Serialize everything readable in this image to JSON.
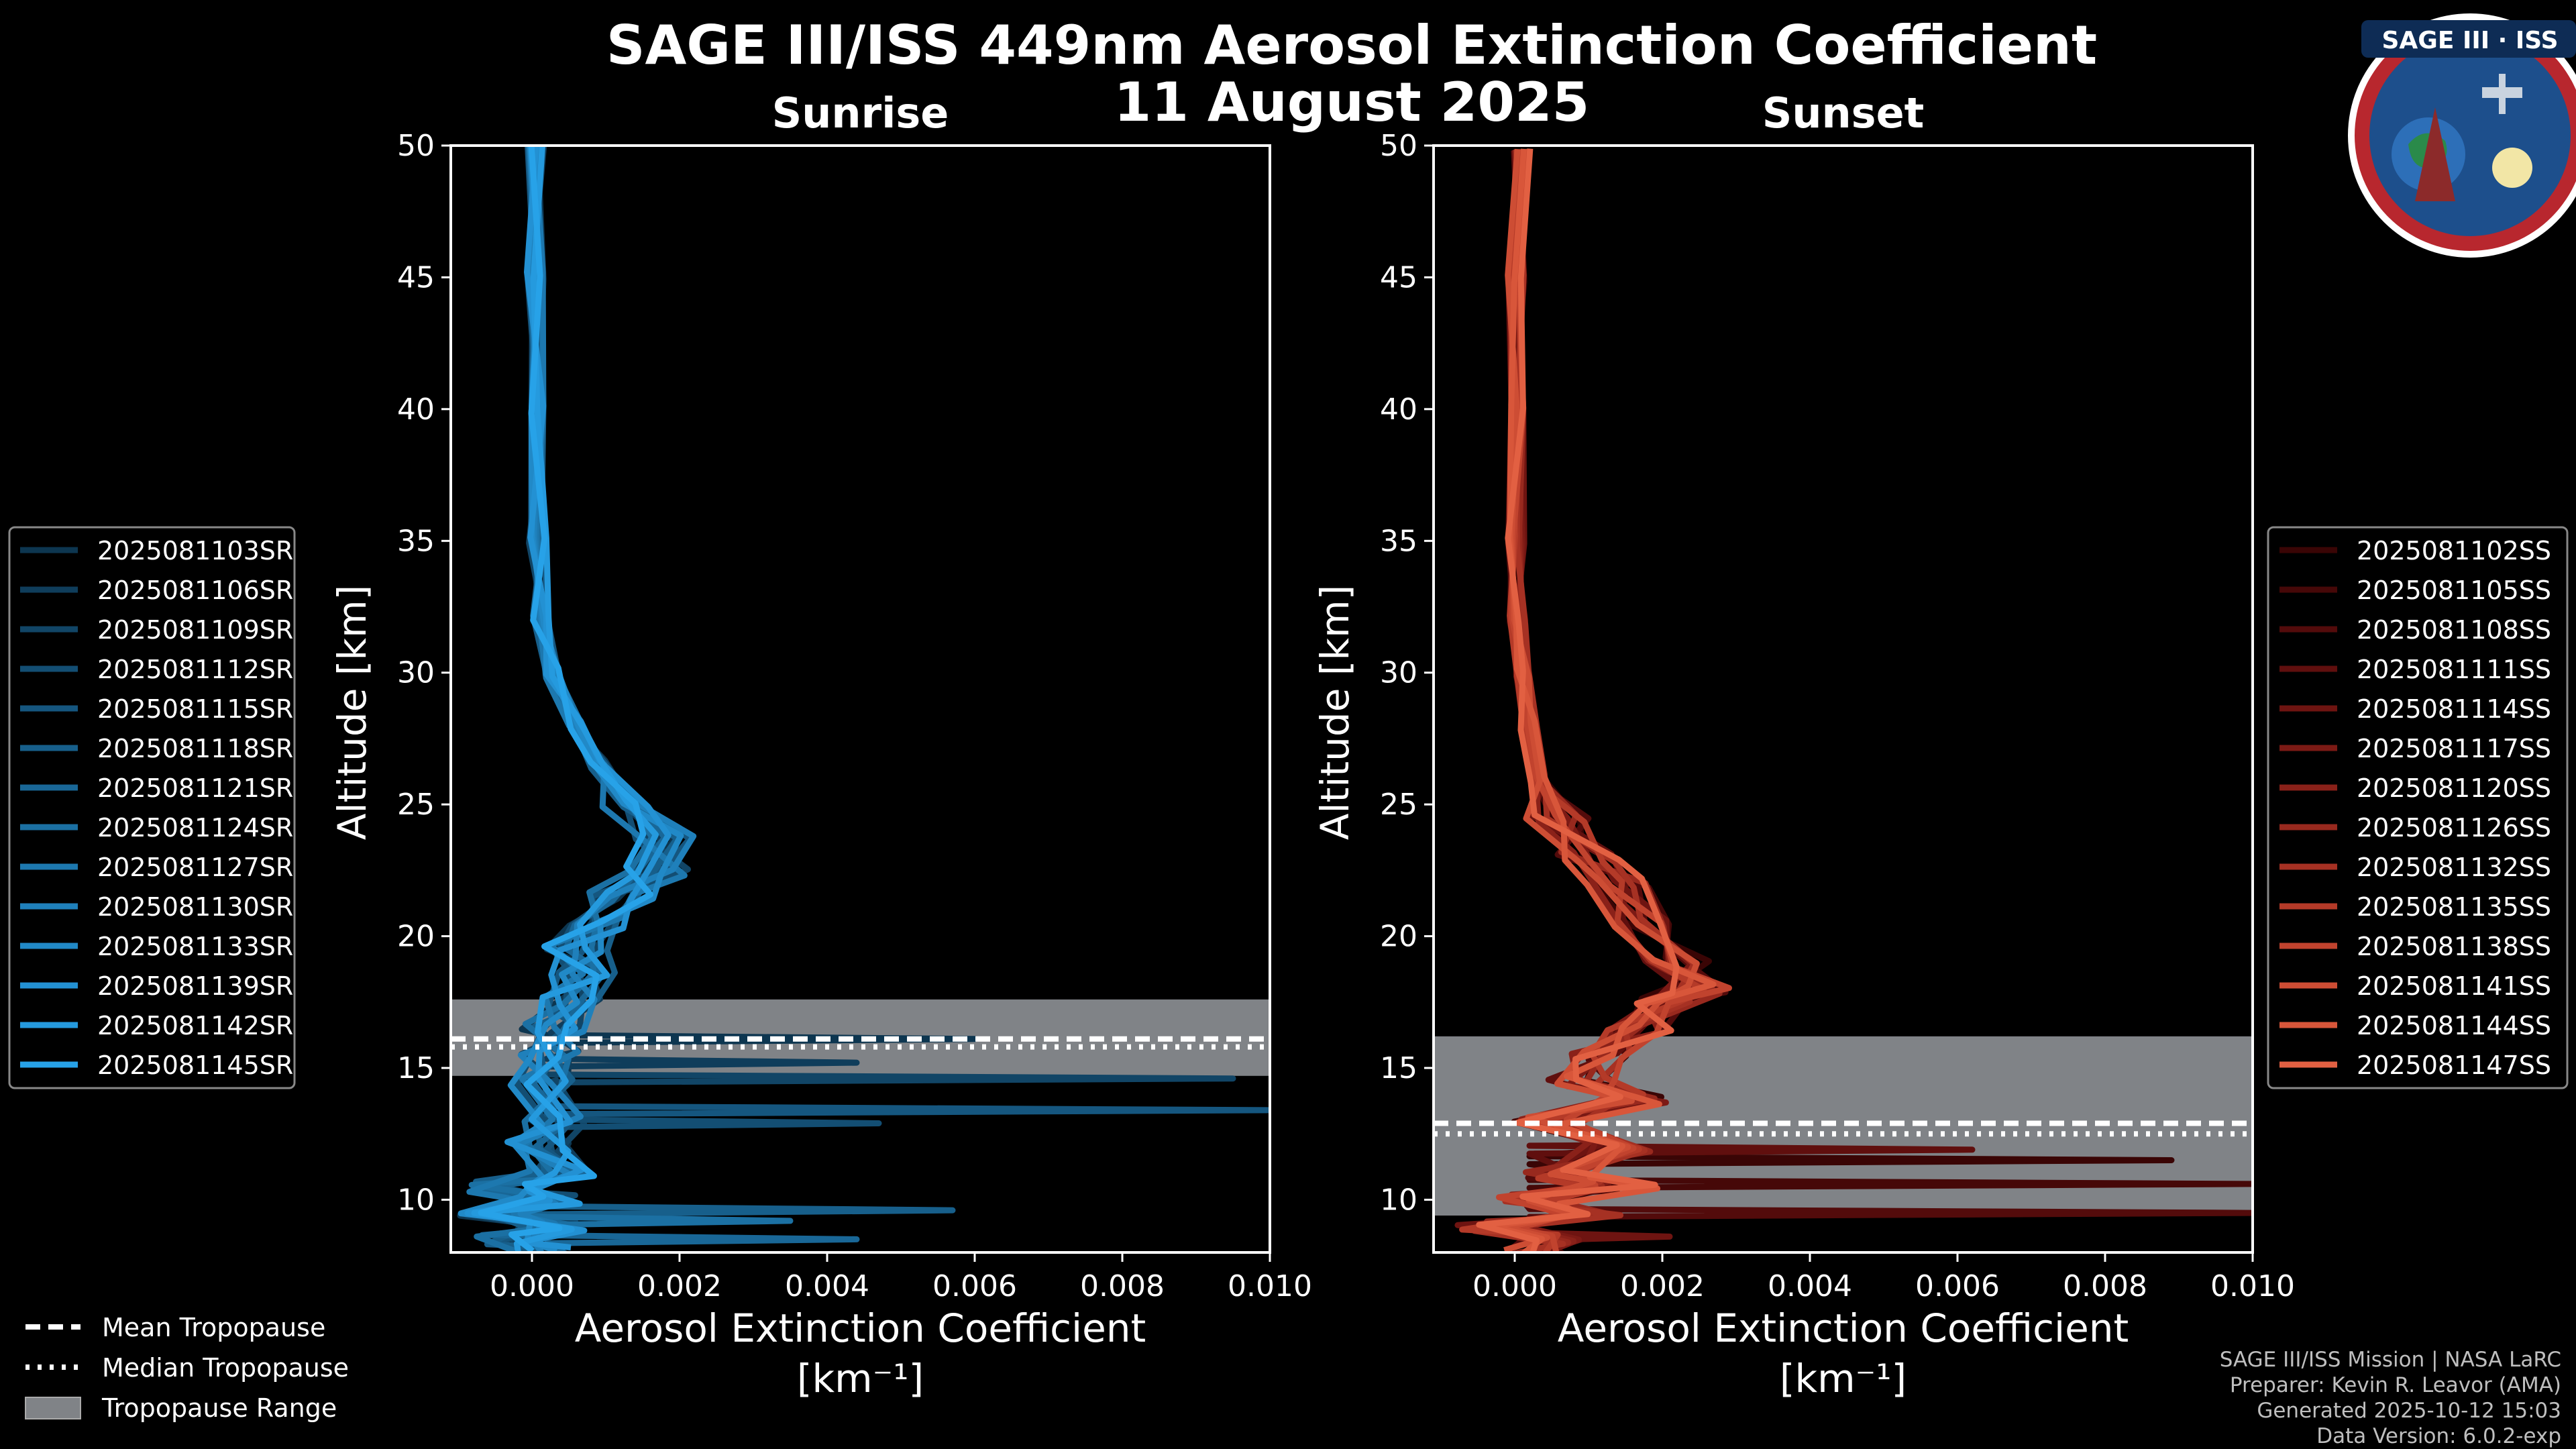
{
  "title": "SAGE III/ISS 449nm Aerosol Extinction Coefficient",
  "date": "11 August 2025",
  "logo": {
    "text": "SAGE III · ISS"
  },
  "chart_data": [
    {
      "type": "line",
      "subtitle": "Sunrise",
      "xlabel": "Aerosol Extinction Coefficient",
      "xunit": "[km⁻¹]",
      "ylabel": "Altitude [km]",
      "xlim": [
        -0.0011,
        0.01
      ],
      "ylim": [
        8,
        50
      ],
      "xticks": [
        "0.000",
        "0.002",
        "0.004",
        "0.006",
        "0.008",
        "0.010"
      ],
      "xtick_values": [
        0,
        0.002,
        0.004,
        0.006,
        0.008,
        0.01
      ],
      "yticks": [
        10,
        15,
        20,
        25,
        30,
        35,
        40,
        45,
        50
      ],
      "tropopause": {
        "min": 14.7,
        "max": 17.6,
        "mean": 16.1,
        "median": 15.8
      },
      "base_profile": [
        [
          5e-05,
          50
        ],
        [
          5e-05,
          45
        ],
        [
          6e-05,
          40
        ],
        [
          8e-05,
          35
        ],
        [
          0.00012,
          32
        ],
        [
          0.0003,
          30
        ],
        [
          0.0006,
          28
        ],
        [
          0.0009,
          26.5
        ],
        [
          0.0013,
          25
        ],
        [
          0.0018,
          23.8
        ],
        [
          0.0017,
          22.5
        ],
        [
          0.0012,
          21.5
        ],
        [
          0.0008,
          20.5
        ],
        [
          0.0006,
          19.5
        ],
        [
          0.0007,
          18.5
        ],
        [
          0.0005,
          17.5
        ],
        [
          0.0003,
          16.5
        ],
        [
          0.0002,
          15.5
        ],
        [
          0.0001,
          14.5
        ],
        [
          0.0003,
          13
        ],
        [
          0.0001,
          12
        ],
        [
          0.0004,
          11
        ],
        [
          -0.0004,
          10.5
        ],
        [
          0.0002,
          10
        ],
        [
          -0.0006,
          9.5
        ],
        [
          0.0003,
          9
        ],
        [
          -0.0003,
          8.5
        ],
        [
          0.0001,
          8
        ]
      ],
      "spikes": [
        [
          0.006,
          16.1
        ],
        [
          0.0044,
          15.2
        ],
        [
          0.0095,
          14.6
        ],
        [
          0.0047,
          12.9
        ],
        [
          0.01,
          13.4
        ],
        [
          0.0057,
          9.6
        ],
        [
          0.0044,
          8.5
        ],
        [
          0.0035,
          9.2
        ]
      ],
      "legend": {
        "position": "left",
        "entries": [
          "2025081103SR",
          "2025081106SR",
          "2025081109SR",
          "2025081112SR",
          "2025081115SR",
          "2025081118SR",
          "2025081121SR",
          "2025081124SR",
          "2025081127SR",
          "2025081130SR",
          "2025081133SR",
          "2025081139SR",
          "2025081142SR",
          "2025081145SR"
        ],
        "colors": [
          "#0d3650",
          "#0f3d5b",
          "#114566",
          "#134e73",
          "#15567f",
          "#175f8b",
          "#196797",
          "#1b70a3",
          "#1d78af",
          "#1f80bb",
          "#2189c7",
          "#2391d3",
          "#259ade",
          "#27a2e8"
        ]
      }
    },
    {
      "type": "line",
      "subtitle": "Sunset",
      "xlabel": "Aerosol Extinction Coefficient",
      "xunit": "[km⁻¹]",
      "ylabel": "Altitude [km]",
      "xlim": [
        -0.0011,
        0.01
      ],
      "ylim": [
        8,
        50
      ],
      "xticks": [
        "0.000",
        "0.002",
        "0.004",
        "0.006",
        "0.008",
        "0.010"
      ],
      "xtick_values": [
        0,
        0.002,
        0.004,
        0.006,
        0.008,
        0.01
      ],
      "yticks": [
        10,
        15,
        20,
        25,
        30,
        35,
        40,
        45,
        50
      ],
      "tropopause": {
        "min": 9.4,
        "max": 16.2,
        "mean": 12.9,
        "median": 12.5
      },
      "base_profile": [
        [
          0.0001,
          50
        ],
        [
          2e-05,
          45
        ],
        [
          1e-05,
          40
        ],
        [
          2e-05,
          35
        ],
        [
          5e-05,
          32
        ],
        [
          0.0001,
          30
        ],
        [
          0.0002,
          28
        ],
        [
          0.0003,
          26
        ],
        [
          0.0006,
          24.5
        ],
        [
          0.001,
          23
        ],
        [
          0.0014,
          22
        ],
        [
          0.0018,
          20.5
        ],
        [
          0.0022,
          19
        ],
        [
          0.0025,
          18
        ],
        [
          0.0021,
          17.5
        ],
        [
          0.0017,
          16.5
        ],
        [
          0.0012,
          15.5
        ],
        [
          0.0009,
          14.5
        ],
        [
          0.0016,
          13.8
        ],
        [
          0.0004,
          13
        ],
        [
          0.0014,
          12
        ],
        [
          0.0006,
          11
        ],
        [
          0.0015,
          10.5
        ],
        [
          0.0002,
          10
        ],
        [
          0.001,
          9.5
        ],
        [
          -0.0004,
          9
        ],
        [
          0.0006,
          8.5
        ],
        [
          0.0002,
          8
        ]
      ],
      "spikes": [
        [
          0.0089,
          11.5
        ],
        [
          0.01,
          10.6
        ],
        [
          0.01,
          9.5
        ],
        [
          0.0062,
          11.9
        ],
        [
          0.0021,
          8.6
        ]
      ],
      "legend": {
        "position": "right",
        "entries": [
          "2025081102SS",
          "2025081105SS",
          "2025081108SS",
          "2025081111SS",
          "2025081114SS",
          "2025081117SS",
          "2025081120SS",
          "2025081126SS",
          "2025081132SS",
          "2025081135SS",
          "2025081138SS",
          "2025081141SS",
          "2025081144SS",
          "2025081147SS"
        ],
        "colors": [
          "#3a0505",
          "#460808",
          "#530b0b",
          "#600f0e",
          "#6e1411",
          "#7c1a15",
          "#8a2119",
          "#98291e",
          "#a63123",
          "#b43a28",
          "#c1432e",
          "#cd4d34",
          "#d8563a",
          "#e26042"
        ]
      }
    }
  ],
  "tropopause_legend": [
    "Mean Tropopause",
    "Median Tropopause",
    "Tropopause Range"
  ],
  "footer": [
    "SAGE III/ISS Mission | NASA LaRC",
    "Preparer: Kevin R. Leavor (AMA)",
    "Generated 2025-10-12 15:03",
    "Data Version: 6.0.2-exp"
  ]
}
